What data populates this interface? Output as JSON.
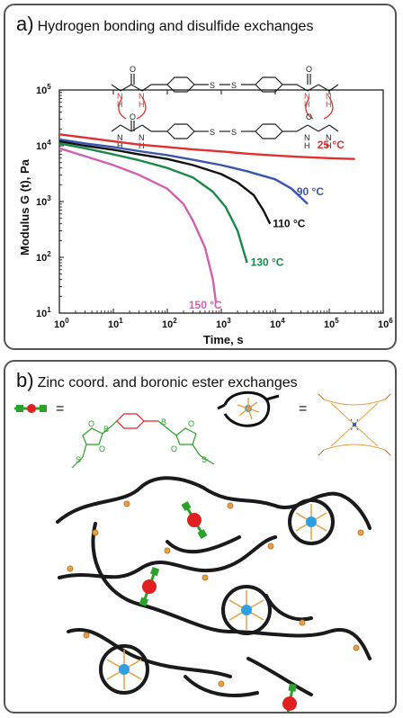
{
  "panel_a": {
    "letter": "a)",
    "title": "Hydrogen bonding and disulfide exchanges"
  },
  "panel_b": {
    "letter": "b)",
    "title": "Zinc coord. and boronic ester exchanges",
    "equals": "=",
    "boronic_atoms": {
      "B": "B",
      "O": "O",
      "S": "S"
    }
  },
  "molecule_a": {
    "O": "O",
    "N": "N",
    "H": "H",
    "S": "S"
  },
  "colors": {
    "red": "#e03030",
    "blue": "#3a55b0",
    "black": "#111111",
    "green": "#1a8a4a",
    "magenta": "#d060b0",
    "crosslinker_green": "#2aa12a",
    "crosslinker_red": "#e02020",
    "zinc_blue": "#2ea0e0",
    "ligand_orange": "#e8a040"
  },
  "chart_data": {
    "type": "line",
    "xlabel": "Time, s",
    "ylabel": "Modulus G (t), Pa",
    "x_scale": "log",
    "y_scale": "log",
    "xlim": [
      1,
      1000000
    ],
    "ylim": [
      10,
      100000
    ],
    "xticks": [
      {
        "v": 1,
        "base": "10",
        "exp": "0"
      },
      {
        "v": 10,
        "base": "10",
        "exp": "1"
      },
      {
        "v": 100,
        "base": "10",
        "exp": "2"
      },
      {
        "v": 1000,
        "base": "10",
        "exp": "3"
      },
      {
        "v": 10000,
        "base": "10",
        "exp": "4"
      },
      {
        "v": 100000,
        "base": "10",
        "exp": "5"
      },
      {
        "v": 1000000,
        "base": "10",
        "exp": "6"
      }
    ],
    "yticks": [
      {
        "v": 10,
        "base": "10",
        "exp": "1"
      },
      {
        "v": 100,
        "base": "10",
        "exp": "2"
      },
      {
        "v": 1000,
        "base": "10",
        "exp": "3"
      },
      {
        "v": 10000,
        "base": "10",
        "exp": "4"
      },
      {
        "v": 100000,
        "base": "10",
        "exp": "5"
      }
    ],
    "series": [
      {
        "name": "25 °C",
        "color": "#e03030",
        "x": [
          1,
          3,
          10,
          30,
          100,
          300,
          1000,
          3000,
          10000,
          30000,
          100000,
          300000
        ],
        "y": [
          16000,
          14000,
          12000,
          10500,
          9500,
          8600,
          7900,
          7200,
          6700,
          6300,
          6000,
          5800
        ]
      },
      {
        "name": "90 °C",
        "color": "#3a55b0",
        "x": [
          1,
          3,
          10,
          30,
          100,
          300,
          1000,
          3000,
          10000,
          20000,
          40000
        ],
        "y": [
          13000,
          11000,
          9500,
          8000,
          6800,
          5600,
          4500,
          3500,
          2500,
          1700,
          900
        ]
      },
      {
        "name": "110 °C",
        "color": "#111111",
        "x": [
          1,
          3,
          10,
          30,
          100,
          300,
          1000,
          2000,
          4000,
          6000,
          8000
        ],
        "y": [
          12000,
          10000,
          8500,
          7000,
          5800,
          4500,
          3100,
          2200,
          1300,
          700,
          400
        ]
      },
      {
        "name": "130 °C",
        "color": "#1a8a4a",
        "x": [
          1,
          3,
          10,
          30,
          100,
          300,
          700,
          1200,
          2000,
          3000
        ],
        "y": [
          11000,
          9000,
          7000,
          5500,
          4000,
          2700,
          1500,
          800,
          300,
          80
        ]
      },
      {
        "name": "150 °C",
        "color": "#d060b0",
        "x": [
          1,
          3,
          10,
          30,
          100,
          200,
          300,
          500,
          700,
          800
        ],
        "y": [
          9000,
          6500,
          4500,
          3000,
          1700,
          900,
          450,
          150,
          40,
          15
        ]
      }
    ],
    "labels": [
      {
        "text": "25 °C",
        "x": 60000,
        "y": 9000,
        "color": "#e03030"
      },
      {
        "text": "90 °C",
        "x": 25000,
        "y": 1300,
        "color": "#3a55b0"
      },
      {
        "text": "110 °C",
        "x": 9000,
        "y": 350,
        "color": "#111111"
      },
      {
        "text": "130 °C",
        "x": 3500,
        "y": 70,
        "color": "#1a8a4a"
      },
      {
        "text": "150 °C",
        "x": 250,
        "y": 12,
        "color": "#d060b0"
      }
    ]
  }
}
